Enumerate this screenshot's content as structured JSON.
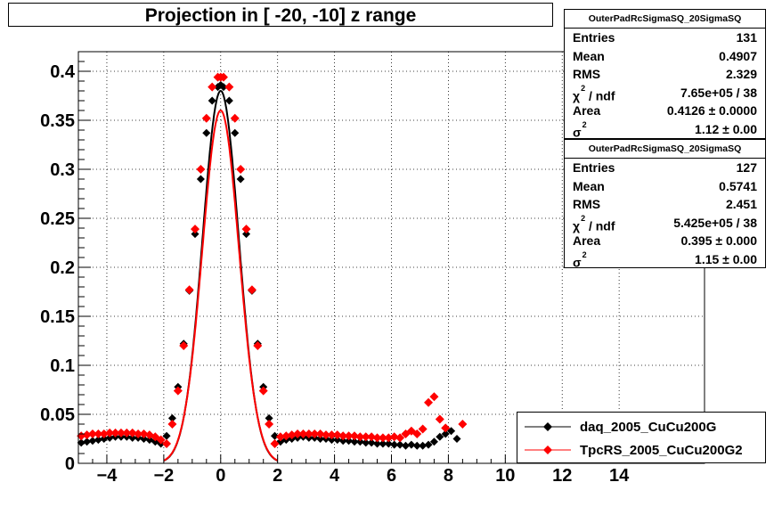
{
  "chart_data": {
    "type": "scatter",
    "title": "Projection in [ -20, -10] z range",
    "xlabel": "",
    "ylabel": "",
    "xlim": [
      -5,
      17
    ],
    "ylim": [
      0,
      0.42
    ],
    "grid": true,
    "legend_position": "bottom-right",
    "x_ticks": [
      "−4",
      "−2",
      "0",
      "2",
      "4",
      "6",
      "8",
      "10",
      "12",
      "14"
    ],
    "x_tick_values": [
      -4,
      -2,
      0,
      2,
      4,
      6,
      8,
      10,
      12,
      14
    ],
    "y_ticks": [
      "0",
      "0.05",
      "0.1",
      "0.15",
      "0.2",
      "0.25",
      "0.3",
      "0.35",
      "0.4"
    ],
    "y_tick_values": [
      0,
      0.05,
      0.1,
      0.15,
      0.2,
      0.25,
      0.3,
      0.35,
      0.4
    ],
    "series": [
      {
        "name": "daq_2005_CuCu200G",
        "color": "#000000",
        "marker": "diamond",
        "x": [
          -4.9,
          -4.7,
          -4.5,
          -4.3,
          -4.1,
          -3.9,
          -3.7,
          -3.5,
          -3.3,
          -3.1,
          -2.9,
          -2.7,
          -2.5,
          -2.3,
          -2.1,
          -1.9,
          -1.7,
          -1.5,
          -1.3,
          -1.1,
          -0.9,
          -0.7,
          -0.5,
          -0.3,
          -0.1,
          0.0,
          0.1,
          0.3,
          0.5,
          0.7,
          0.9,
          1.1,
          1.3,
          1.5,
          1.7,
          1.9,
          2.1,
          2.3,
          2.5,
          2.7,
          2.9,
          3.1,
          3.3,
          3.5,
          3.7,
          3.9,
          4.1,
          4.3,
          4.5,
          4.7,
          4.9,
          5.1,
          5.3,
          5.5,
          5.7,
          5.9,
          6.1,
          6.3,
          6.5,
          6.7,
          6.9,
          7.1,
          7.3,
          7.5,
          7.7,
          7.9,
          8.1,
          8.3
        ],
        "y": [
          0.021,
          0.022,
          0.023,
          0.024,
          0.025,
          0.026,
          0.027,
          0.027,
          0.027,
          0.026,
          0.026,
          0.025,
          0.024,
          0.022,
          0.02,
          0.028,
          0.046,
          0.078,
          0.122,
          0.176,
          0.234,
          0.29,
          0.337,
          0.37,
          0.384,
          0.386,
          0.384,
          0.37,
          0.337,
          0.29,
          0.234,
          0.176,
          0.122,
          0.078,
          0.046,
          0.028,
          0.022,
          0.024,
          0.025,
          0.026,
          0.027,
          0.026,
          0.026,
          0.025,
          0.025,
          0.024,
          0.024,
          0.023,
          0.023,
          0.022,
          0.022,
          0.021,
          0.021,
          0.02,
          0.02,
          0.02,
          0.019,
          0.019,
          0.018,
          0.019,
          0.018,
          0.018,
          0.019,
          0.022,
          0.027,
          0.03,
          0.033,
          0.025
        ]
      },
      {
        "name": "TpcRS_2005_CuCu200G2",
        "color": "#ff0000",
        "marker": "diamond",
        "x": [
          -4.9,
          -4.7,
          -4.5,
          -4.3,
          -4.1,
          -3.9,
          -3.7,
          -3.5,
          -3.3,
          -3.1,
          -2.9,
          -2.7,
          -2.5,
          -2.3,
          -2.1,
          -1.9,
          -1.7,
          -1.5,
          -1.3,
          -1.1,
          -0.9,
          -0.7,
          -0.5,
          -0.3,
          -0.1,
          0.0,
          0.1,
          0.3,
          0.5,
          0.7,
          0.9,
          1.1,
          1.3,
          1.5,
          1.7,
          1.9,
          2.1,
          2.3,
          2.5,
          2.7,
          2.9,
          3.1,
          3.3,
          3.5,
          3.7,
          3.9,
          4.1,
          4.3,
          4.5,
          4.7,
          4.9,
          5.1,
          5.3,
          5.5,
          5.7,
          5.9,
          6.1,
          6.3,
          6.5,
          6.7,
          6.9,
          7.1,
          7.3,
          7.5,
          7.7,
          7.9,
          8.5
        ],
        "y": [
          0.028,
          0.029,
          0.03,
          0.03,
          0.03,
          0.031,
          0.031,
          0.031,
          0.031,
          0.031,
          0.03,
          0.03,
          0.029,
          0.027,
          0.024,
          0.02,
          0.04,
          0.074,
          0.12,
          0.177,
          0.239,
          0.3,
          0.352,
          0.384,
          0.394,
          0.394,
          0.394,
          0.384,
          0.352,
          0.3,
          0.239,
          0.177,
          0.12,
          0.074,
          0.04,
          0.02,
          0.027,
          0.028,
          0.029,
          0.03,
          0.03,
          0.03,
          0.03,
          0.03,
          0.029,
          0.029,
          0.029,
          0.028,
          0.028,
          0.028,
          0.027,
          0.027,
          0.027,
          0.026,
          0.026,
          0.026,
          0.027,
          0.026,
          0.03,
          0.033,
          0.03,
          0.035,
          0.062,
          0.068,
          0.045,
          0.036,
          0.04
        ]
      }
    ],
    "fit_curves": [
      {
        "series": "daq_2005_CuCu200G",
        "sigma2": 1.12,
        "peak": 0.38
      },
      {
        "series": "TpcRS_2005_CuCu200G2",
        "sigma2": 1.15,
        "peak": 0.36
      }
    ]
  },
  "stats": [
    {
      "title": "OuterPadRcSigmaSQ_20SigmaSQ",
      "rows": [
        {
          "label": "Entries",
          "value": "131"
        },
        {
          "label": "Mean",
          "value": "0.4907"
        },
        {
          "label": "RMS",
          "value": "2.329"
        },
        {
          "label": "χ",
          "sup": "2",
          "label_tail": " / ndf",
          "value": "7.65e+05 / 38"
        },
        {
          "label": "Area",
          "value": "0.4126 ± 0.0000"
        },
        {
          "label": "σ",
          "sup": "2",
          "label_tail": "",
          "value": "1.12 ± 0.00"
        }
      ]
    },
    {
      "title": "OuterPadRcSigmaSQ_20SigmaSQ",
      "rows": [
        {
          "label": "Entries",
          "value": "127"
        },
        {
          "label": "Mean",
          "value": "0.5741"
        },
        {
          "label": "RMS",
          "value": "2.451"
        },
        {
          "label": "χ",
          "sup": "2",
          "label_tail": " / ndf",
          "value": "5.425e+05 / 38"
        },
        {
          "label": "Area",
          "value": "0.395 ± 0.000"
        },
        {
          "label": "σ",
          "sup": "2",
          "label_tail": "",
          "value": "1.15 ± 0.00"
        }
      ]
    }
  ],
  "legend": [
    {
      "label": "daq_2005_CuCu200G",
      "color": "#000000"
    },
    {
      "label": "TpcRS_2005_CuCu200G2",
      "color": "#ff0000"
    }
  ]
}
